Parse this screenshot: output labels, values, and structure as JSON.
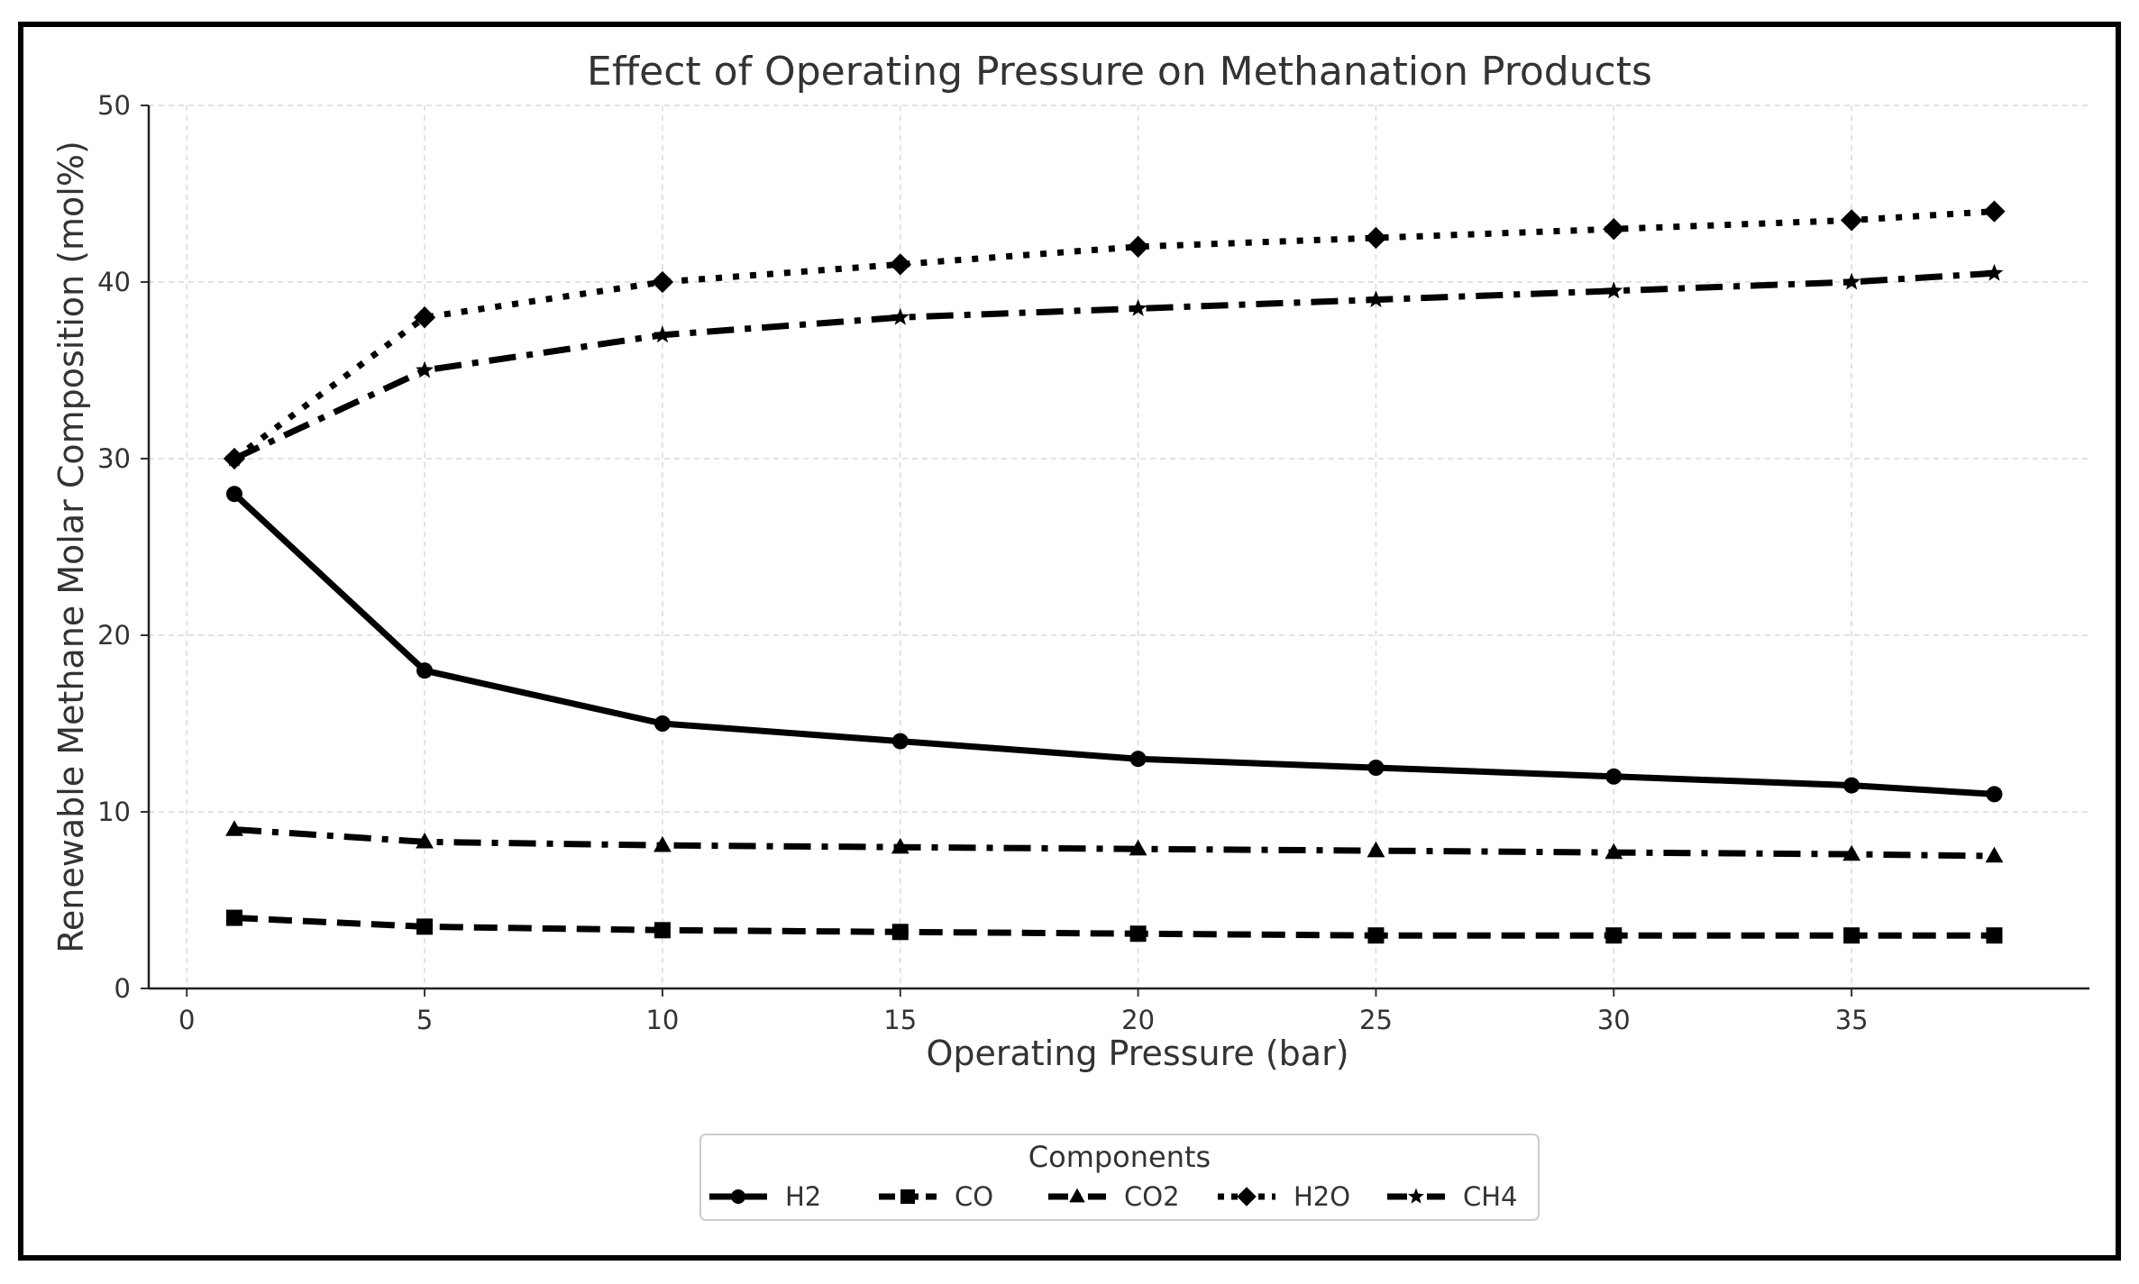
{
  "chart_data": {
    "type": "line",
    "title": "Effect of Operating Pressure on Methanation Products",
    "xlabel": "Operating Pressure (bar)",
    "ylabel": "Renewable Methane Molar Composition (mol%)",
    "xlim": [
      -0.8,
      40
    ],
    "ylim": [
      0,
      50
    ],
    "xticks": [
      0,
      5,
      10,
      15,
      20,
      25,
      30,
      35
    ],
    "yticks": [
      0,
      10,
      20,
      30,
      40,
      50
    ],
    "grid": true,
    "x": [
      1,
      5,
      10,
      15,
      20,
      25,
      30,
      35,
      38
    ],
    "series": [
      {
        "name": "H2",
        "values": [
          28,
          18,
          15,
          14,
          13,
          12.5,
          12,
          11.5,
          11
        ],
        "linestyle": "solid",
        "marker": "circle"
      },
      {
        "name": "CO",
        "values": [
          4,
          3.5,
          3.3,
          3.2,
          3.1,
          3.0,
          3.0,
          3.0,
          3.0
        ],
        "linestyle": "dashed",
        "marker": "square"
      },
      {
        "name": "CO2",
        "values": [
          9,
          8.3,
          8.1,
          8.0,
          7.9,
          7.8,
          7.7,
          7.6,
          7.5
        ],
        "linestyle": "dashdot",
        "marker": "triangle"
      },
      {
        "name": "H2O",
        "values": [
          30,
          38,
          40,
          41,
          42,
          42.5,
          43,
          43.5,
          44
        ],
        "linestyle": "dotted",
        "marker": "diamond"
      },
      {
        "name": "CH4",
        "values": [
          30,
          35,
          37,
          38,
          38.5,
          39,
          39.5,
          40,
          40.5
        ],
        "linestyle": "dashdot",
        "marker": "star"
      }
    ],
    "legend": {
      "title": "Components",
      "position": "bottom-center"
    },
    "colors": {
      "line": "#000000",
      "grid": "#d9d9d9",
      "text": "#333333"
    }
  }
}
